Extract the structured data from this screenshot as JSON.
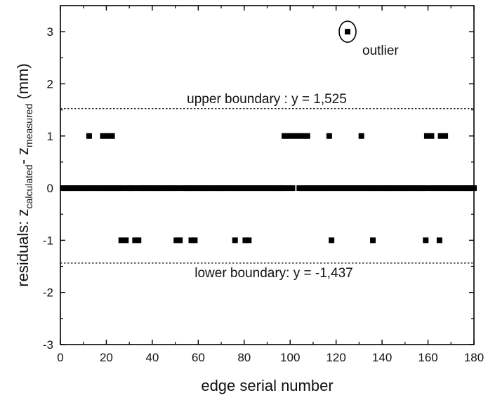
{
  "chart_data": {
    "type": "scatter",
    "title": "",
    "xlabel": "edge serial number",
    "ylabel": {
      "prefix": "residuals: z",
      "sub1": "calculated",
      "mid": "- z",
      "sub2": "measured",
      "suffix": " (mm)"
    },
    "xlim": [
      0,
      180
    ],
    "ylim": [
      -3,
      3.5
    ],
    "xticks": [
      0,
      20,
      40,
      60,
      80,
      100,
      120,
      140,
      160,
      180
    ],
    "yticks": [
      -3,
      -2,
      -1,
      0,
      1,
      2,
      3
    ],
    "grid": false,
    "legend": "none",
    "series": [
      {
        "values_note": "",
        "points": [
          [
            12.5,
            1
          ],
          [
            18.5,
            1
          ],
          [
            20.5,
            1
          ],
          [
            22.5,
            1
          ],
          [
            97.5,
            1
          ],
          [
            99.5,
            1
          ],
          [
            101.5,
            1
          ],
          [
            103.5,
            1
          ],
          [
            105.5,
            1
          ],
          [
            107.5,
            1
          ],
          [
            117,
            1
          ],
          [
            131,
            1
          ],
          [
            159.5,
            1
          ],
          [
            161.5,
            1
          ],
          [
            165.5,
            1
          ],
          [
            167.5,
            1
          ],
          [
            26.5,
            -1
          ],
          [
            28.5,
            -1
          ],
          [
            32.5,
            -1
          ],
          [
            34,
            -1
          ],
          [
            50.5,
            -1
          ],
          [
            52,
            -1
          ],
          [
            57,
            -1
          ],
          [
            58.5,
            -1
          ],
          [
            76,
            -1
          ],
          [
            80.5,
            -1
          ],
          [
            82,
            -1
          ],
          [
            118,
            -1
          ],
          [
            136,
            -1
          ],
          [
            159,
            -1
          ],
          [
            165,
            -1
          ],
          [
            125,
            3
          ]
        ],
        "zero_points_x": [
          1,
          2,
          3,
          4,
          5,
          6,
          7,
          8,
          9,
          10,
          11,
          12,
          13,
          14,
          15,
          16,
          17,
          18,
          19,
          20,
          21,
          22,
          23,
          24,
          25,
          26,
          27,
          29,
          30,
          31,
          32,
          34,
          35,
          36,
          37,
          38,
          39,
          40,
          41,
          42,
          43,
          44,
          45,
          46,
          47,
          48,
          49,
          50,
          51,
          53,
          54,
          55,
          56,
          57,
          58,
          59,
          60,
          61,
          62,
          63,
          64,
          65,
          66,
          67,
          68,
          69,
          70,
          71,
          72,
          73,
          74,
          75,
          76,
          77,
          78,
          79,
          80,
          81,
          82,
          83,
          84,
          85,
          86,
          87,
          88,
          89,
          90,
          91,
          92,
          93,
          94,
          95,
          96,
          97,
          98,
          100,
          101,
          104,
          105,
          106,
          107,
          108,
          109,
          110,
          111,
          112,
          113,
          114,
          115,
          116,
          117,
          118,
          119,
          120,
          121,
          122,
          123,
          124,
          125,
          126,
          127,
          128,
          129,
          130,
          131,
          132,
          133,
          134,
          135,
          136,
          137,
          138,
          139,
          140,
          141,
          142,
          143,
          144,
          145,
          146,
          147,
          148,
          149,
          150,
          151,
          152,
          153,
          154,
          155,
          156,
          157,
          158,
          159,
          161,
          162,
          163,
          164,
          165,
          166,
          167,
          168,
          169,
          170,
          171,
          172,
          173,
          174,
          175,
          176,
          177,
          178,
          179,
          180
        ]
      }
    ],
    "annotations": {
      "upper": {
        "label": "upper boundary : y = 1,525",
        "y": 1.525
      },
      "lower": {
        "label": "lower boundary: y = -1,437",
        "y": -1.437
      },
      "outlier": {
        "label": "outlier",
        "x": 125,
        "y": 3
      }
    },
    "colors": {
      "marker": "#000000",
      "axis": "#000000"
    }
  }
}
